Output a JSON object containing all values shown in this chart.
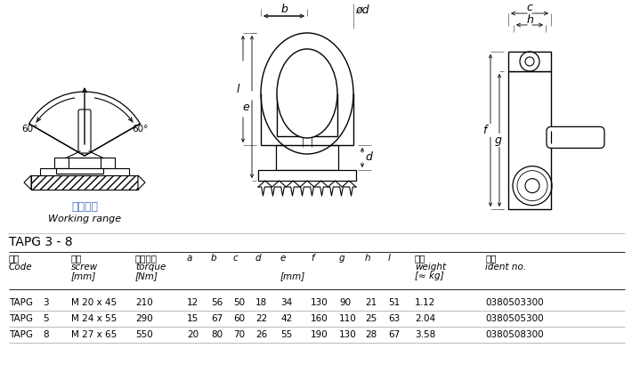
{
  "title": "TAPG 3 - 8",
  "bg_color": "#ffffff",
  "data_rows": [
    [
      "TAPG",
      "3",
      "M 20 x 45",
      "210",
      "12",
      "56",
      "50",
      "18",
      "34",
      "130",
      "90",
      "21",
      "51",
      "1.12",
      "0380503300"
    ],
    [
      "TAPG",
      "5",
      "M 24 x 55",
      "290",
      "15",
      "67",
      "60",
      "22",
      "42",
      "160",
      "110",
      "25",
      "63",
      "2.04",
      "0380505300"
    ],
    [
      "TAPG",
      "8",
      "M 27 x 65",
      "550",
      "20",
      "80",
      "70",
      "26",
      "55",
      "190",
      "130",
      "28",
      "67",
      "3.58",
      "0380508300"
    ]
  ],
  "cn_label_color": "#4472c4",
  "line_color": "#000000",
  "dim_line_color": "#555555"
}
